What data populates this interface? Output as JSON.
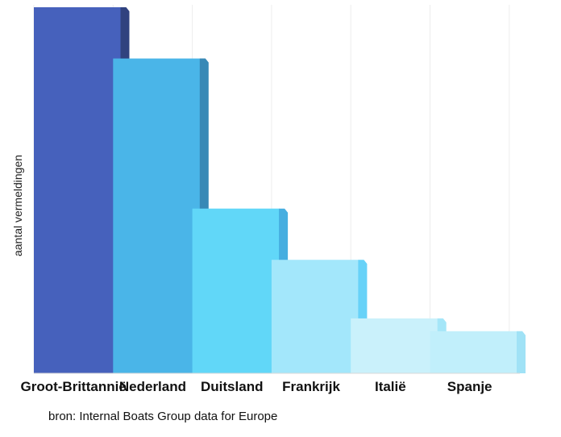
{
  "chart_data": {
    "type": "bar",
    "categories": [
      "Groot-Brittannië",
      "Nederland",
      "Duitsland",
      "Frankrijk",
      "Italië",
      "Spanje"
    ],
    "values": [
      100,
      86,
      45,
      31,
      15,
      11.5
    ],
    "ylim": [
      0,
      100
    ],
    "ylabel": "aantal vermeldingen",
    "xlabel": "",
    "grid": "vertical",
    "legend": "none",
    "colors": [
      "#4661bc",
      "#4ab5e8",
      "#61d7f8",
      "#a3e7fb",
      "#caf1fb",
      "#c1effb"
    ],
    "side_colors": [
      "#30427f",
      "#3889b6",
      "#46aee0",
      "#67d2f8",
      "#a5e6f8",
      "#a0e2f6"
    ]
  },
  "source_note": "bron: Internal Boats Group data for Europe"
}
